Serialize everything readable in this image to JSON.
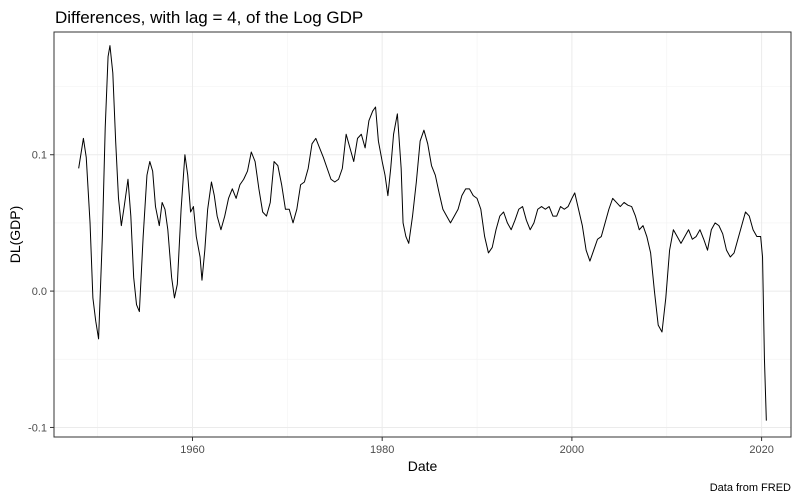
{
  "chart_data": {
    "type": "line",
    "title": "Differences, with lag = 4, of the Log GDP",
    "xlabel": "Date",
    "ylabel": "DL(GDP)",
    "caption": "Data from FRED",
    "xlim": [
      1945.4,
      2023.1
    ],
    "ylim": [
      -0.107,
      0.19
    ],
    "x_ticks": [
      1960,
      1980,
      2000,
      2020
    ],
    "x_tick_labels": [
      "1960",
      "1980",
      "2000",
      "2020"
    ],
    "y_ticks": [
      -0.1,
      0.0,
      0.1
    ],
    "y_tick_labels": [
      "-0.1",
      "0.0",
      "0.1"
    ],
    "grid": true,
    "legend": "none",
    "series": [
      {
        "color": "#000000",
        "points": [
          [
            1948.0,
            0.09
          ],
          [
            1948.5,
            0.112
          ],
          [
            1948.8,
            0.098
          ],
          [
            1949.2,
            0.05
          ],
          [
            1949.5,
            -0.005
          ],
          [
            1949.8,
            -0.022
          ],
          [
            1950.1,
            -0.035
          ],
          [
            1950.5,
            0.04
          ],
          [
            1950.8,
            0.12
          ],
          [
            1951.1,
            0.172
          ],
          [
            1951.3,
            0.18
          ],
          [
            1951.6,
            0.16
          ],
          [
            1951.9,
            0.11
          ],
          [
            1952.2,
            0.068
          ],
          [
            1952.5,
            0.048
          ],
          [
            1952.8,
            0.062
          ],
          [
            1953.2,
            0.082
          ],
          [
            1953.5,
            0.055
          ],
          [
            1953.8,
            0.01
          ],
          [
            1954.1,
            -0.01
          ],
          [
            1954.4,
            -0.015
          ],
          [
            1954.8,
            0.04
          ],
          [
            1955.2,
            0.085
          ],
          [
            1955.5,
            0.095
          ],
          [
            1955.8,
            0.088
          ],
          [
            1956.1,
            0.062
          ],
          [
            1956.5,
            0.048
          ],
          [
            1956.8,
            0.065
          ],
          [
            1957.1,
            0.06
          ],
          [
            1957.4,
            0.045
          ],
          [
            1957.8,
            0.01
          ],
          [
            1958.1,
            -0.005
          ],
          [
            1958.4,
            0.005
          ],
          [
            1958.8,
            0.06
          ],
          [
            1959.2,
            0.1
          ],
          [
            1959.5,
            0.085
          ],
          [
            1959.8,
            0.058
          ],
          [
            1960.1,
            0.062
          ],
          [
            1960.4,
            0.04
          ],
          [
            1960.8,
            0.025
          ],
          [
            1961.0,
            0.008
          ],
          [
            1961.3,
            0.03
          ],
          [
            1961.6,
            0.06
          ],
          [
            1962.0,
            0.08
          ],
          [
            1962.3,
            0.07
          ],
          [
            1962.6,
            0.055
          ],
          [
            1963.0,
            0.045
          ],
          [
            1963.4,
            0.055
          ],
          [
            1963.8,
            0.068
          ],
          [
            1964.2,
            0.075
          ],
          [
            1964.6,
            0.068
          ],
          [
            1965.0,
            0.078
          ],
          [
            1965.4,
            0.082
          ],
          [
            1965.8,
            0.088
          ],
          [
            1966.2,
            0.102
          ],
          [
            1966.6,
            0.095
          ],
          [
            1967.0,
            0.075
          ],
          [
            1967.4,
            0.058
          ],
          [
            1967.8,
            0.055
          ],
          [
            1968.2,
            0.065
          ],
          [
            1968.6,
            0.095
          ],
          [
            1969.0,
            0.092
          ],
          [
            1969.4,
            0.078
          ],
          [
            1969.8,
            0.06
          ],
          [
            1970.2,
            0.06
          ],
          [
            1970.6,
            0.05
          ],
          [
            1971.0,
            0.06
          ],
          [
            1971.4,
            0.078
          ],
          [
            1971.8,
            0.08
          ],
          [
            1972.2,
            0.09
          ],
          [
            1972.6,
            0.108
          ],
          [
            1973.0,
            0.112
          ],
          [
            1973.4,
            0.105
          ],
          [
            1973.8,
            0.098
          ],
          [
            1974.2,
            0.09
          ],
          [
            1974.6,
            0.082
          ],
          [
            1975.0,
            0.08
          ],
          [
            1975.4,
            0.082
          ],
          [
            1975.8,
            0.09
          ],
          [
            1976.2,
            0.115
          ],
          [
            1976.6,
            0.105
          ],
          [
            1977.0,
            0.095
          ],
          [
            1977.4,
            0.112
          ],
          [
            1977.8,
            0.115
          ],
          [
            1978.2,
            0.105
          ],
          [
            1978.6,
            0.125
          ],
          [
            1979.0,
            0.132
          ],
          [
            1979.3,
            0.135
          ],
          [
            1979.6,
            0.11
          ],
          [
            1980.0,
            0.095
          ],
          [
            1980.3,
            0.085
          ],
          [
            1980.6,
            0.07
          ],
          [
            1980.9,
            0.09
          ],
          [
            1981.2,
            0.115
          ],
          [
            1981.6,
            0.13
          ],
          [
            1982.0,
            0.09
          ],
          [
            1982.2,
            0.05
          ],
          [
            1982.5,
            0.04
          ],
          [
            1982.8,
            0.035
          ],
          [
            1983.2,
            0.055
          ],
          [
            1983.6,
            0.08
          ],
          [
            1984.0,
            0.11
          ],
          [
            1984.4,
            0.118
          ],
          [
            1984.8,
            0.108
          ],
          [
            1985.2,
            0.092
          ],
          [
            1985.6,
            0.085
          ],
          [
            1986.0,
            0.072
          ],
          [
            1986.4,
            0.06
          ],
          [
            1986.8,
            0.055
          ],
          [
            1987.2,
            0.05
          ],
          [
            1987.6,
            0.055
          ],
          [
            1988.0,
            0.06
          ],
          [
            1988.4,
            0.07
          ],
          [
            1988.8,
            0.075
          ],
          [
            1989.2,
            0.075
          ],
          [
            1989.6,
            0.07
          ],
          [
            1990.0,
            0.068
          ],
          [
            1990.4,
            0.06
          ],
          [
            1990.8,
            0.04
          ],
          [
            1991.2,
            0.028
          ],
          [
            1991.6,
            0.032
          ],
          [
            1992.0,
            0.045
          ],
          [
            1992.4,
            0.055
          ],
          [
            1992.8,
            0.058
          ],
          [
            1993.2,
            0.05
          ],
          [
            1993.6,
            0.045
          ],
          [
            1994.0,
            0.052
          ],
          [
            1994.4,
            0.06
          ],
          [
            1994.8,
            0.062
          ],
          [
            1995.2,
            0.052
          ],
          [
            1995.6,
            0.045
          ],
          [
            1996.0,
            0.05
          ],
          [
            1996.4,
            0.06
          ],
          [
            1996.8,
            0.062
          ],
          [
            1997.2,
            0.06
          ],
          [
            1997.6,
            0.062
          ],
          [
            1998.0,
            0.055
          ],
          [
            1998.4,
            0.055
          ],
          [
            1998.8,
            0.062
          ],
          [
            1999.2,
            0.06
          ],
          [
            1999.6,
            0.062
          ],
          [
            2000.0,
            0.068
          ],
          [
            2000.3,
            0.072
          ],
          [
            2000.7,
            0.06
          ],
          [
            2001.1,
            0.048
          ],
          [
            2001.5,
            0.03
          ],
          [
            2001.9,
            0.022
          ],
          [
            2002.3,
            0.03
          ],
          [
            2002.7,
            0.038
          ],
          [
            2003.1,
            0.04
          ],
          [
            2003.5,
            0.05
          ],
          [
            2003.9,
            0.06
          ],
          [
            2004.3,
            0.068
          ],
          [
            2004.7,
            0.065
          ],
          [
            2005.1,
            0.062
          ],
          [
            2005.5,
            0.065
          ],
          [
            2005.9,
            0.063
          ],
          [
            2006.3,
            0.062
          ],
          [
            2006.7,
            0.055
          ],
          [
            2007.1,
            0.045
          ],
          [
            2007.5,
            0.048
          ],
          [
            2007.9,
            0.04
          ],
          [
            2008.3,
            0.028
          ],
          [
            2008.7,
            0.0
          ],
          [
            2009.1,
            -0.025
          ],
          [
            2009.5,
            -0.03
          ],
          [
            2009.9,
            -0.005
          ],
          [
            2010.3,
            0.03
          ],
          [
            2010.7,
            0.045
          ],
          [
            2011.1,
            0.04
          ],
          [
            2011.5,
            0.035
          ],
          [
            2011.9,
            0.04
          ],
          [
            2012.3,
            0.045
          ],
          [
            2012.7,
            0.038
          ],
          [
            2013.1,
            0.04
          ],
          [
            2013.5,
            0.045
          ],
          [
            2013.9,
            0.038
          ],
          [
            2014.3,
            0.03
          ],
          [
            2014.7,
            0.045
          ],
          [
            2015.1,
            0.05
          ],
          [
            2015.5,
            0.048
          ],
          [
            2015.9,
            0.042
          ],
          [
            2016.3,
            0.03
          ],
          [
            2016.7,
            0.025
          ],
          [
            2017.1,
            0.028
          ],
          [
            2017.5,
            0.038
          ],
          [
            2017.9,
            0.048
          ],
          [
            2018.3,
            0.058
          ],
          [
            2018.7,
            0.055
          ],
          [
            2019.1,
            0.045
          ],
          [
            2019.5,
            0.04
          ],
          [
            2019.9,
            0.04
          ],
          [
            2020.1,
            0.025
          ],
          [
            2020.3,
            -0.05
          ],
          [
            2020.5,
            -0.095
          ]
        ]
      }
    ]
  }
}
